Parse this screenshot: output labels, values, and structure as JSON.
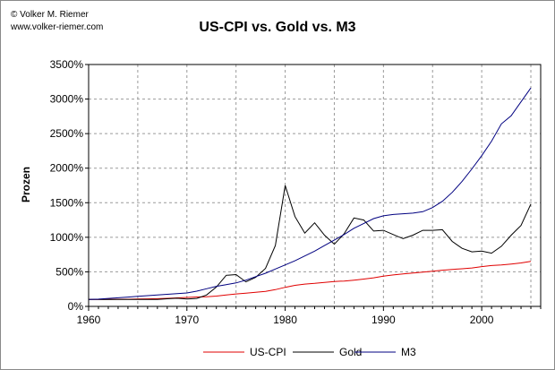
{
  "credit": {
    "author": "© Volker M. Riemer",
    "website": "www.volker-riemer.com"
  },
  "chart_data": {
    "type": "line",
    "title": "US-CPI vs. Gold vs. M3",
    "xlabel": "",
    "ylabel": "Prozen",
    "xlim": [
      1960,
      2006
    ],
    "ylim": [
      0,
      3500
    ],
    "x_ticks": [
      1960,
      1970,
      1980,
      1990,
      2000
    ],
    "x_tick_labels": [
      "1960",
      "1970",
      "1980",
      "1990",
      "2000"
    ],
    "y_ticks": [
      0,
      500,
      1000,
      1500,
      2000,
      2500,
      3000,
      3500
    ],
    "y_tick_labels": [
      "0%",
      "500%",
      "1000%",
      "1500%",
      "2000%",
      "2500%",
      "3000%",
      "3500%"
    ],
    "x": [
      1960,
      1961,
      1962,
      1963,
      1964,
      1965,
      1966,
      1967,
      1968,
      1969,
      1970,
      1971,
      1972,
      1973,
      1974,
      1975,
      1976,
      1977,
      1978,
      1979,
      1980,
      1981,
      1982,
      1983,
      1984,
      1985,
      1986,
      1987,
      1988,
      1989,
      1990,
      1991,
      1992,
      1993,
      1994,
      1995,
      1996,
      1997,
      1998,
      1999,
      2000,
      2001,
      2002,
      2003,
      2004,
      2005
    ],
    "grid": true,
    "legend_position": "bottom",
    "series": [
      {
        "name": "US-CPI",
        "color": "#e00000",
        "values": [
          100,
          101,
          102,
          103,
          104,
          106,
          109,
          112,
          117,
          123,
          130,
          136,
          140,
          149,
          165,
          180,
          191,
          203,
          218,
          243,
          276,
          304,
          323,
          333,
          348,
          360,
          367,
          380,
          395,
          414,
          437,
          455,
          469,
          483,
          495,
          509,
          524,
          536,
          544,
          556,
          575,
          591,
          600,
          613,
          629,
          651
        ]
      },
      {
        "name": "Gold",
        "color": "#000000",
        "values": [
          100,
          100,
          100,
          100,
          100,
          100,
          100,
          100,
          110,
          118,
          108,
          115,
          165,
          280,
          450,
          460,
          355,
          420,
          550,
          880,
          1750,
          1300,
          1060,
          1210,
          1030,
          900,
          1050,
          1280,
          1250,
          1090,
          1100,
          1040,
          980,
          1030,
          1100,
          1100,
          1110,
          940,
          840,
          790,
          800,
          770,
          870,
          1030,
          1170,
          1480
        ]
      },
      {
        "name": "M3",
        "color": "#000080",
        "values": [
          100,
          105,
          115,
          125,
          135,
          145,
          155,
          165,
          175,
          185,
          195,
          220,
          255,
          290,
          315,
          340,
          380,
          430,
          480,
          540,
          600,
          660,
          730,
          800,
          880,
          960,
          1040,
          1130,
          1200,
          1270,
          1310,
          1330,
          1340,
          1350,
          1370,
          1430,
          1520,
          1650,
          1810,
          1990,
          2180,
          2390,
          2640,
          2760,
          2960,
          3160
        ]
      }
    ]
  }
}
